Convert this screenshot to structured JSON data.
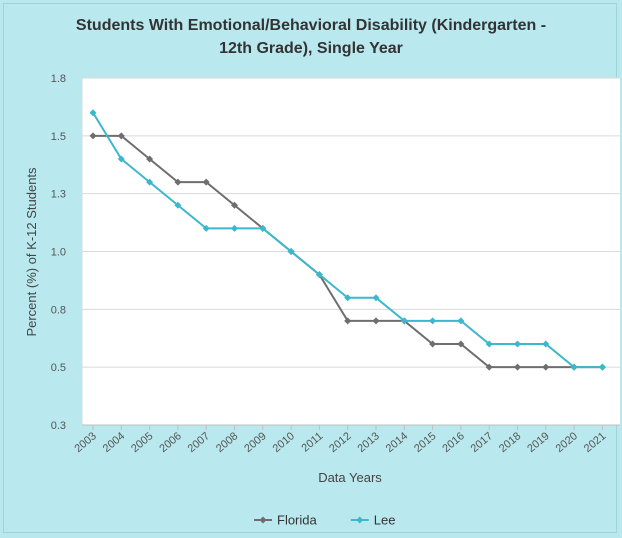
{
  "chart_data": {
    "type": "line",
    "title_line1": "Students With Emotional/Behavioral Disability (Kindergarten -",
    "title_line2": "12th Grade), Single Year",
    "xlabel": "Data Years",
    "ylabel": "Percent (%) of K-12 Students",
    "categories": [
      "2003",
      "2004",
      "2005",
      "2006",
      "2007",
      "2008",
      "2009",
      "2010",
      "2011",
      "2012",
      "2013",
      "2014",
      "2015",
      "2016",
      "2017",
      "2018",
      "2019",
      "2020",
      "2021"
    ],
    "y_ticks": [
      "0.3",
      "0.5",
      "0.8",
      "1.0",
      "1.3",
      "1.5",
      "1.8"
    ],
    "y_tick_values": [
      0.25,
      0.5,
      0.75,
      1.0,
      1.25,
      1.5,
      1.75
    ],
    "ylim": [
      0.25,
      1.75
    ],
    "grid": true,
    "legend_position": "bottom",
    "series": [
      {
        "name": "Florida",
        "color": "#6e6e6e",
        "values": [
          1.5,
          1.5,
          1.4,
          1.3,
          1.3,
          1.2,
          1.1,
          1.0,
          0.9,
          0.7,
          0.7,
          0.7,
          0.6,
          0.6,
          0.5,
          0.5,
          0.5,
          0.5,
          0.5
        ]
      },
      {
        "name": "Lee",
        "color": "#3bb8cc",
        "values": [
          1.6,
          1.4,
          1.3,
          1.2,
          1.1,
          1.1,
          1.1,
          1.0,
          0.9,
          0.8,
          0.8,
          0.7,
          0.7,
          0.7,
          0.6,
          0.6,
          0.6,
          0.5,
          0.5
        ]
      }
    ]
  }
}
